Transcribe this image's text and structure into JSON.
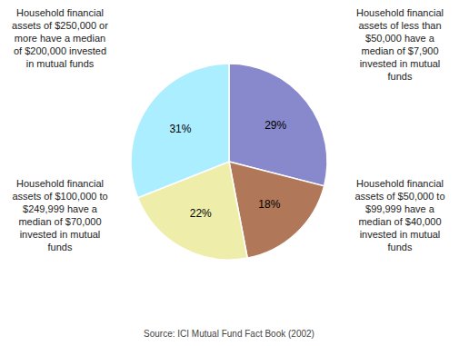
{
  "chart_data": {
    "type": "pie",
    "values": [
      29,
      18,
      22,
      31
    ],
    "value_labels": [
      "29%",
      "18%",
      "22%",
      "31%"
    ],
    "colors": [
      "#8888cc",
      "#b07858",
      "#eeeeaa",
      "#aaeeff"
    ],
    "data_labels": true,
    "annotations": [
      "Household financial\nassets of less than\n$50,000 have a\nmedian of $7,900\ninvested in mutual\nfunds",
      "Household financial\nassets of $50,000 to\n$99,999 have a\nmedian of $40,000\ninvested in mutual\nfunds",
      "Household financial\nassets of $100,000 to\n$249,999 have a\nmedian of $70,000\ninvested in mutual\nfunds",
      "Household financial\nassets of $250,000 or\nmore have a median\nof $200,000 invested\nin mutual funds"
    ],
    "source": "Source: ICI Mutual Fund Fact Book (2002)"
  }
}
